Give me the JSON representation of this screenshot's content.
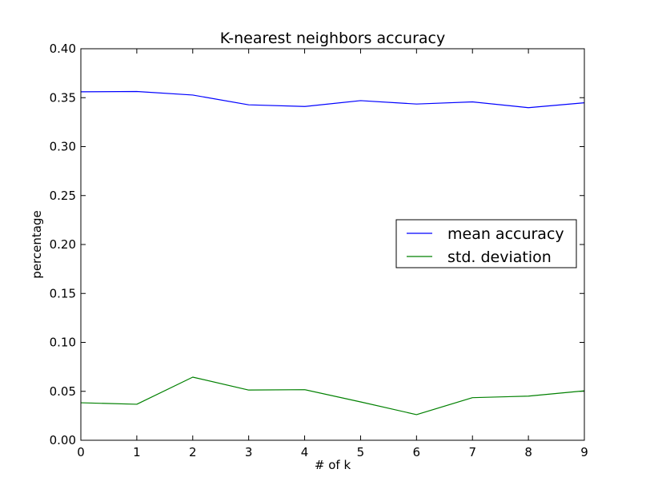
{
  "chart_data": {
    "type": "line",
    "title": "K-nearest neighbors accuracy",
    "xlabel": "# of k",
    "ylabel": "percentage",
    "x": [
      0,
      1,
      2,
      3,
      4,
      5,
      6,
      7,
      8,
      9
    ],
    "xlim": [
      0,
      9
    ],
    "ylim": [
      0.0,
      0.4
    ],
    "xticks": [
      "0",
      "1",
      "2",
      "3",
      "4",
      "5",
      "6",
      "7",
      "8",
      "9"
    ],
    "yticks": [
      "0.00",
      "0.05",
      "0.10",
      "0.15",
      "0.20",
      "0.25",
      "0.30",
      "0.35",
      "0.40"
    ],
    "ytick_values": [
      0.0,
      0.05,
      0.1,
      0.15,
      0.2,
      0.25,
      0.3,
      0.35,
      0.4
    ],
    "grid": false,
    "legend_position": "center-right",
    "series": [
      {
        "name": "mean accuracy",
        "color": "#0000ff",
        "values": [
          0.356,
          0.3563,
          0.3527,
          0.3427,
          0.341,
          0.347,
          0.3435,
          0.3457,
          0.3398,
          0.3448
        ]
      },
      {
        "name": "std. deviation",
        "color": "#008000",
        "values": [
          0.0383,
          0.0368,
          0.0645,
          0.0513,
          0.0517,
          0.0392,
          0.0262,
          0.0435,
          0.0451,
          0.0505
        ]
      }
    ]
  }
}
